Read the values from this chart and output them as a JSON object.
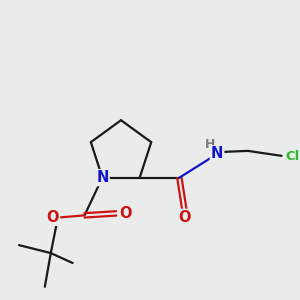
{
  "background_color": "#eaecec",
  "atom_colors": {
    "C": "#1a1a1a",
    "N": "#1414cc",
    "O": "#cc1414",
    "H": "#7a7a7a",
    "Cl": "#2db82d"
  },
  "figsize": [
    3.0,
    3.0
  ],
  "dpi": 100,
  "lw": 1.6
}
